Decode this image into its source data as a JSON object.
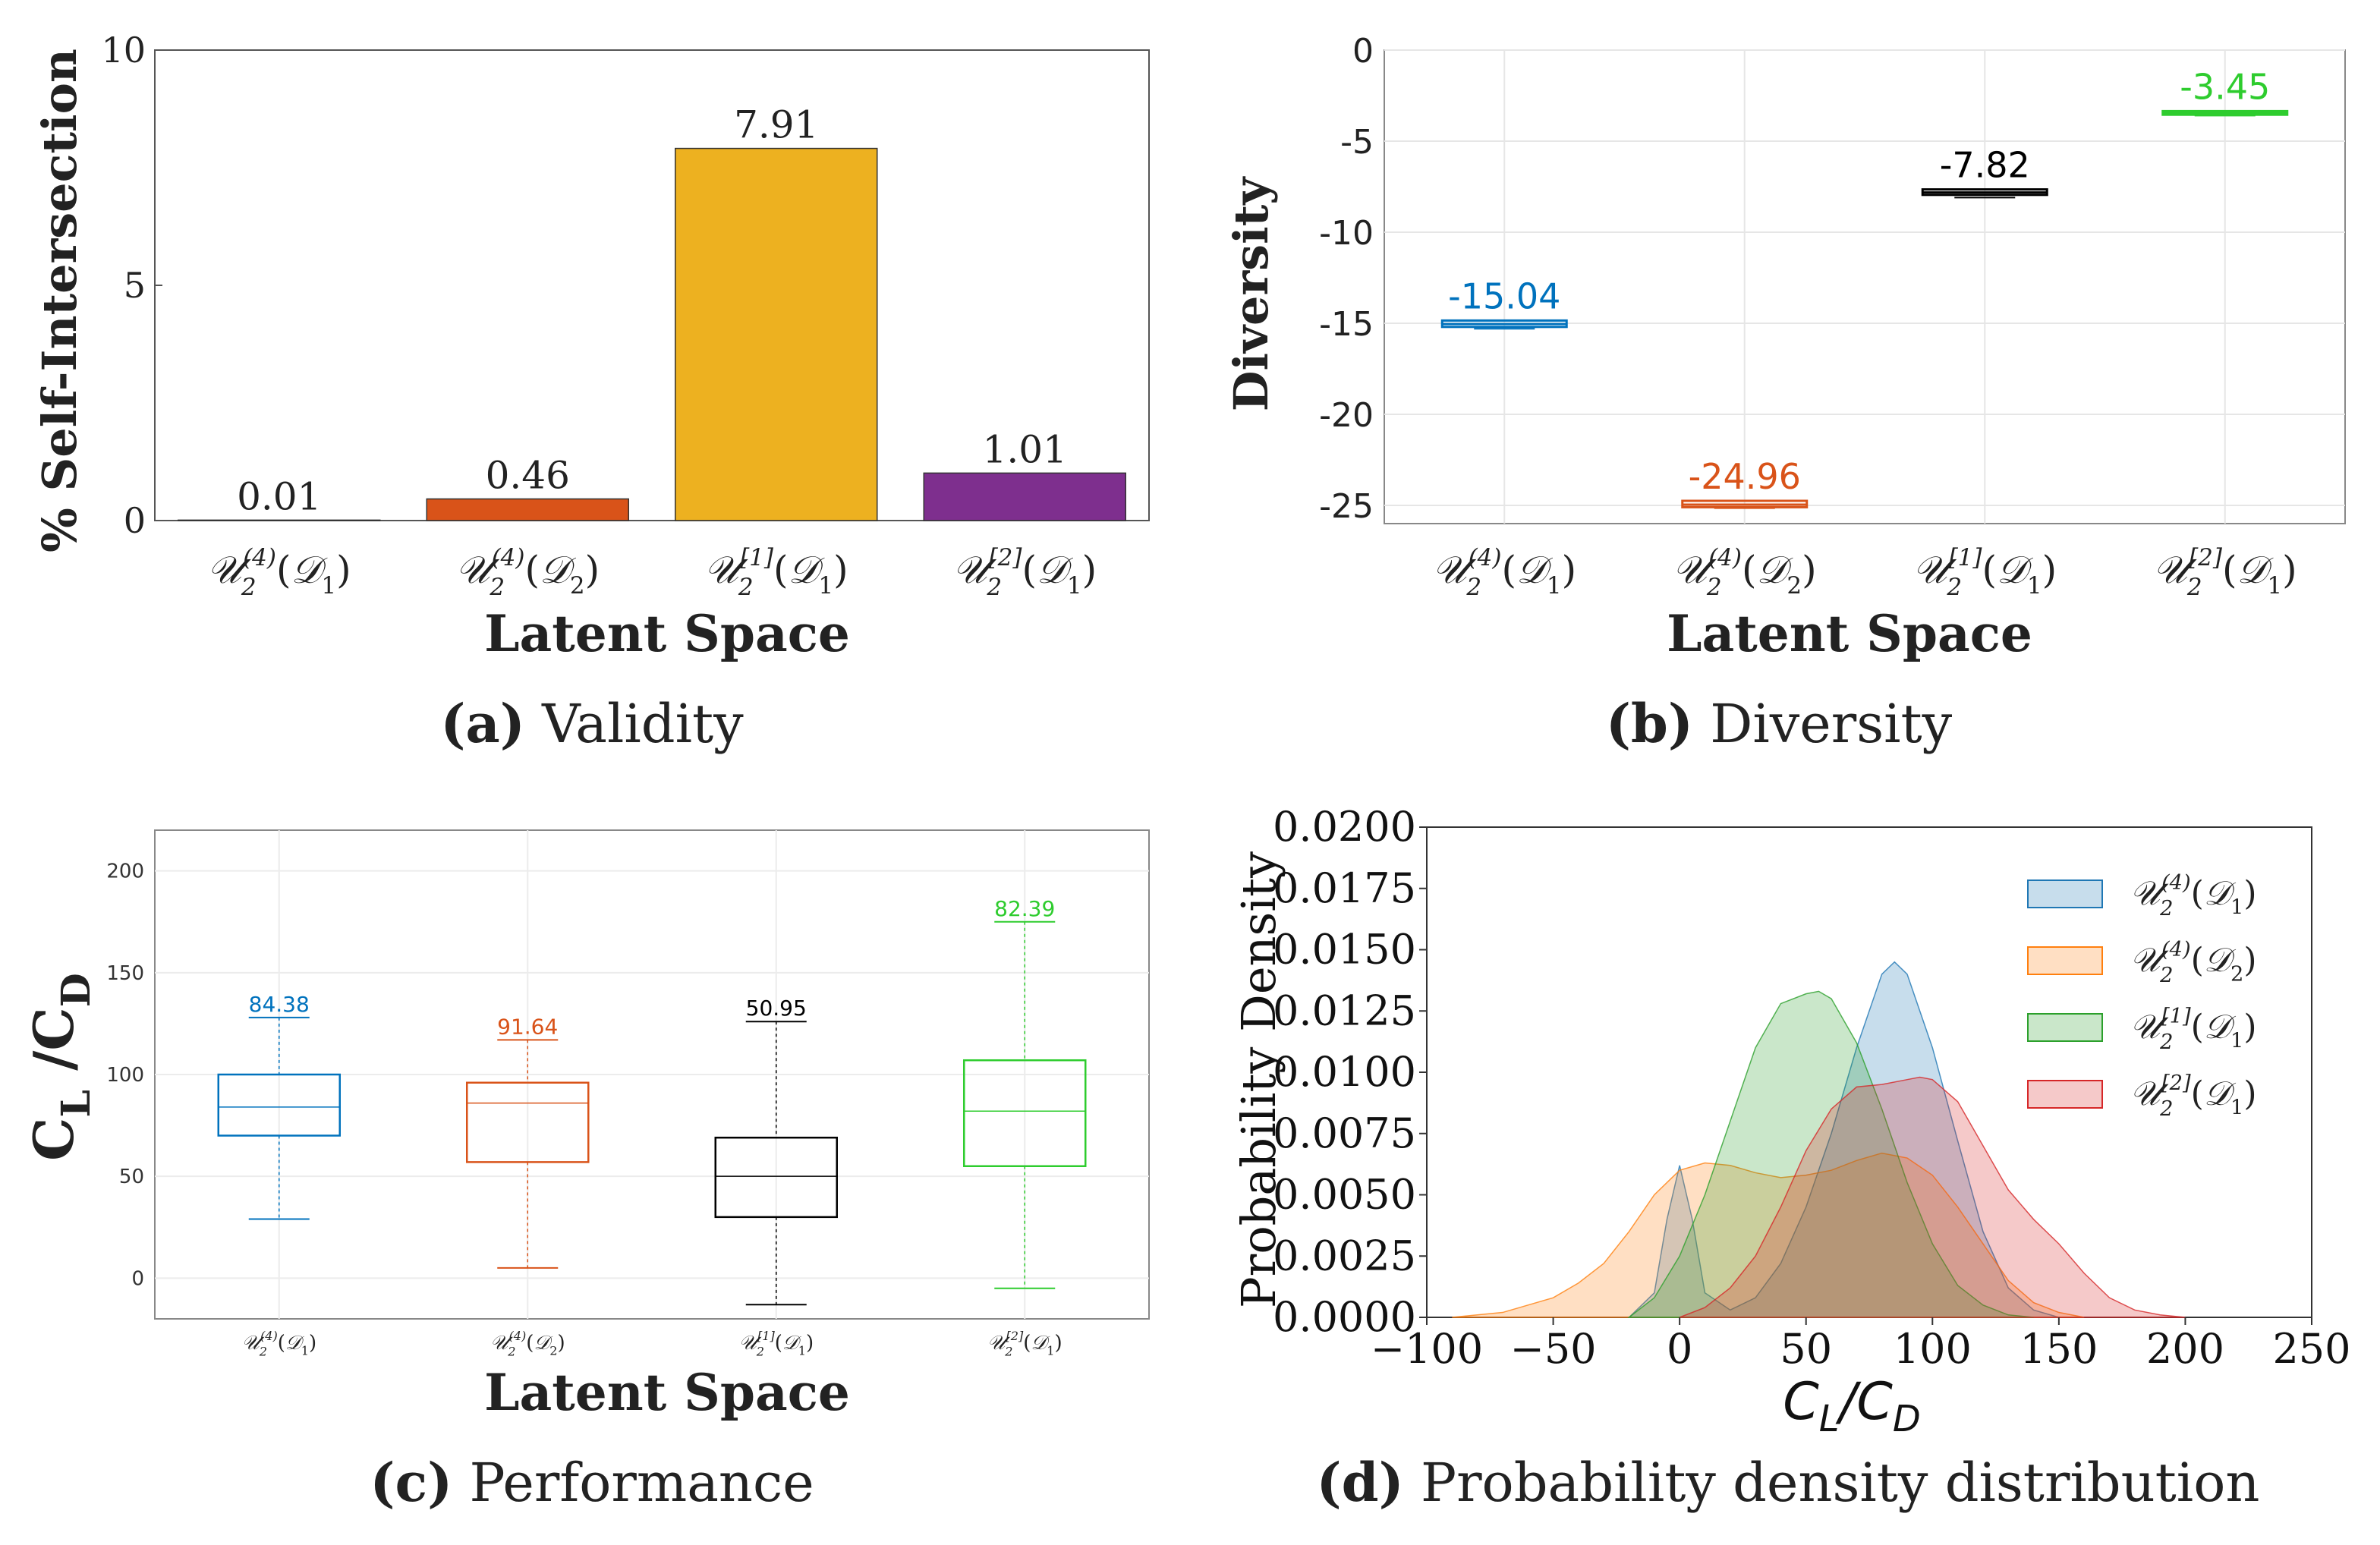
{
  "chart_data": [
    {
      "panel": "a",
      "type": "bar",
      "caption_letter": "(a)",
      "caption_text": "Validity",
      "xlabel": "Latent Space",
      "ylabel": "% Self-Intersection",
      "ylim": [
        0,
        10
      ],
      "yticks": [
        "0",
        "5",
        "10"
      ],
      "categories": [
        {
          "base": "U",
          "sup": "(4)",
          "sub": "2",
          "arg": "D",
          "argsub": "1"
        },
        {
          "base": "U",
          "sup": "(4)",
          "sub": "2",
          "arg": "D",
          "argsub": "2"
        },
        {
          "base": "U",
          "sup": "[1]",
          "sub": "2",
          "arg": "D",
          "argsub": "1"
        },
        {
          "base": "U",
          "sup": "[2]",
          "sub": "2",
          "arg": "D",
          "argsub": "1"
        }
      ],
      "values": [
        0.01,
        0.46,
        7.91,
        1.01
      ],
      "value_labels": [
        "0.01",
        "0.46",
        "7.91",
        "1.01"
      ],
      "colors": [
        "#0072BD",
        "#D95319",
        "#EDB120",
        "#7E2F8E"
      ]
    },
    {
      "panel": "b",
      "type": "box",
      "caption_letter": "(b)",
      "caption_text": "Diversity",
      "xlabel": "Latent Space",
      "ylabel": "Diversity",
      "ylim": [
        -26,
        0
      ],
      "yticks": [
        "0",
        "-5",
        "-10",
        "-15",
        "-20",
        "-25"
      ],
      "ytick_values": [
        0,
        -5,
        -10,
        -15,
        -20,
        -25
      ],
      "grid": true,
      "categories": [
        {
          "base": "U",
          "sup": "(4)",
          "sub": "2",
          "arg": "D",
          "argsub": "1"
        },
        {
          "base": "U",
          "sup": "(4)",
          "sub": "2",
          "arg": "D",
          "argsub": "2"
        },
        {
          "base": "U",
          "sup": "[1]",
          "sub": "2",
          "arg": "D",
          "argsub": "1"
        },
        {
          "base": "U",
          "sup": "[2]",
          "sub": "2",
          "arg": "D",
          "argsub": "1"
        }
      ],
      "medians": [
        -15.04,
        -24.96,
        -7.82,
        -3.45
      ],
      "box_ranges": [
        [
          -15.2,
          -14.85
        ],
        [
          -25.1,
          -24.75
        ],
        [
          -7.95,
          -7.65
        ],
        [
          -3.55,
          -3.35
        ]
      ],
      "whiskers": [
        [
          -15.3,
          -14.8
        ],
        [
          -25.15,
          -24.7
        ],
        [
          -8.1,
          -7.6
        ],
        [
          -3.6,
          -3.3
        ]
      ],
      "value_labels": [
        "-15.04",
        "-24.96",
        "-7.82",
        "-3.45"
      ],
      "colors": [
        "#0072BD",
        "#D95319",
        "#000000",
        "#2ECC2E"
      ]
    },
    {
      "panel": "c",
      "type": "box",
      "caption_letter": "(c)",
      "caption_text": "Performance",
      "xlabel": "Latent Space",
      "ylabel": "C",
      "ylabel_sub": "L",
      "ylabel_mid": " /C",
      "ylabel_sub2": "D",
      "ylim": [
        -20,
        220
      ],
      "yticks": [
        "0",
        "50",
        "100",
        "150",
        "200"
      ],
      "ytick_values": [
        0,
        50,
        100,
        150,
        200
      ],
      "grid": true,
      "categories": [
        {
          "base": "U",
          "sup": "(4)",
          "sub": "2",
          "arg": "D",
          "argsub": "1"
        },
        {
          "base": "U",
          "sup": "(4)",
          "sub": "2",
          "arg": "D",
          "argsub": "2"
        },
        {
          "base": "U",
          "sup": "[1]",
          "sub": "2",
          "arg": "D",
          "argsub": "1"
        },
        {
          "base": "U",
          "sup": "[2]",
          "sub": "2",
          "arg": "D",
          "argsub": "1"
        }
      ],
      "q1": [
        70,
        57,
        30,
        55
      ],
      "q3": [
        100,
        96,
        69,
        107
      ],
      "medians": [
        84,
        86,
        50,
        82
      ],
      "whisker_low": [
        29,
        5,
        -13,
        -5
      ],
      "whisker_high": [
        128,
        117,
        126,
        175
      ],
      "value_labels": [
        "84.38",
        "91.64",
        "50.95",
        "82.39"
      ],
      "colors": [
        "#0072BD",
        "#D95319",
        "#000000",
        "#2ECC2E"
      ]
    },
    {
      "panel": "d",
      "type": "area",
      "caption_letter": "(d)",
      "caption_text": "Probability density distribution",
      "xlabel_base": "C",
      "xlabel_sub": "L",
      "xlabel_mid": "/C",
      "xlabel_sub2": "D",
      "ylabel": "Probability Density",
      "xlim": [
        -100,
        250
      ],
      "ylim": [
        0,
        0.02
      ],
      "xticks": [
        "−100",
        "−50",
        "0",
        "50",
        "100",
        "150",
        "200",
        "250"
      ],
      "xtick_values": [
        -100,
        -50,
        0,
        50,
        100,
        150,
        200,
        250
      ],
      "yticks": [
        "0.0000",
        "0.0025",
        "0.0050",
        "0.0075",
        "0.0100",
        "0.0125",
        "0.0150",
        "0.0175",
        "0.0200"
      ],
      "ytick_values": [
        0,
        0.0025,
        0.005,
        0.0075,
        0.01,
        0.0125,
        0.015,
        0.0175,
        0.02
      ],
      "legend_position": "top-right",
      "series": [
        {
          "name": {
            "base": "U",
            "sup": "(4)",
            "sub": "2",
            "arg": "D",
            "argsub": "1"
          },
          "fill": "#1f77b4",
          "x": [
            -20,
            -10,
            -5,
            0,
            5,
            10,
            20,
            30,
            40,
            50,
            60,
            70,
            80,
            85,
            90,
            100,
            110,
            120,
            130,
            140,
            150
          ],
          "y": [
            0,
            0.001,
            0.004,
            0.0062,
            0.004,
            0.001,
            0.0003,
            0.0008,
            0.0022,
            0.0045,
            0.0075,
            0.011,
            0.014,
            0.0145,
            0.014,
            0.011,
            0.0072,
            0.0035,
            0.0012,
            0.0003,
            0
          ]
        },
        {
          "name": {
            "base": "U",
            "sup": "(4)",
            "sub": "2",
            "arg": "D",
            "argsub": "2"
          },
          "fill": "#ff7f0e",
          "x": [
            -90,
            -70,
            -50,
            -40,
            -30,
            -20,
            -10,
            0,
            10,
            20,
            30,
            40,
            50,
            60,
            70,
            80,
            90,
            100,
            110,
            120,
            130,
            140,
            150,
            160
          ],
          "y": [
            0,
            0.0002,
            0.0008,
            0.0014,
            0.0022,
            0.0035,
            0.005,
            0.006,
            0.0063,
            0.0062,
            0.0059,
            0.0057,
            0.0058,
            0.006,
            0.0064,
            0.0067,
            0.0065,
            0.0058,
            0.0045,
            0.003,
            0.0015,
            0.0006,
            0.0002,
            0
          ]
        },
        {
          "name": {
            "base": "U",
            "sup": "[1]",
            "sub": "2",
            "arg": "D",
            "argsub": "1"
          },
          "fill": "#2ca02c",
          "x": [
            -20,
            -10,
            0,
            10,
            20,
            30,
            40,
            50,
            55,
            60,
            70,
            80,
            90,
            100,
            110,
            120,
            130,
            140
          ],
          "y": [
            0,
            0.0008,
            0.0025,
            0.005,
            0.008,
            0.011,
            0.0128,
            0.0132,
            0.0133,
            0.013,
            0.0112,
            0.0085,
            0.0055,
            0.003,
            0.0013,
            0.0005,
            0.0001,
            0
          ]
        },
        {
          "name": {
            "base": "U",
            "sup": "[2]",
            "sub": "2",
            "arg": "D",
            "argsub": "1"
          },
          "fill": "#d62728",
          "x": [
            0,
            10,
            20,
            30,
            40,
            50,
            60,
            70,
            80,
            90,
            95,
            100,
            110,
            120,
            130,
            140,
            150,
            160,
            170,
            180,
            190,
            200
          ],
          "y": [
            0,
            0.0004,
            0.0012,
            0.0025,
            0.0045,
            0.0068,
            0.0085,
            0.0094,
            0.0095,
            0.0097,
            0.0098,
            0.0097,
            0.0088,
            0.007,
            0.0052,
            0.004,
            0.003,
            0.0018,
            0.0008,
            0.0003,
            0.0001,
            0
          ]
        }
      ]
    }
  ]
}
